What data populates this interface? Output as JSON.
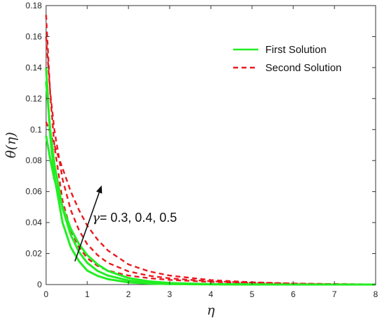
{
  "chart_data": {
    "type": "line",
    "title": "",
    "xlabel": "η",
    "ylabel": "θ(η)",
    "xlim": [
      0,
      8
    ],
    "ylim": [
      0,
      0.18
    ],
    "xticks": [
      0,
      1,
      2,
      3,
      4,
      5,
      6,
      7,
      8
    ],
    "xtick_labels": [
      "0",
      "1",
      "2",
      "3",
      "4",
      "5",
      "6",
      "7",
      "8"
    ],
    "yticks": [
      0,
      0.02,
      0.04,
      0.06,
      0.08,
      0.1,
      0.12,
      0.14,
      0.16,
      0.18
    ],
    "ytick_labels": [
      "0",
      "0.02",
      "0.04",
      "0.06",
      "0.08",
      "0.1",
      "0.12",
      "0.14",
      "0.16",
      "0.18"
    ],
    "grid": false,
    "legend_position": "top-right",
    "legend": [
      {
        "label": "First Solution",
        "color": "#22ee22",
        "style": "solid"
      },
      {
        "label": "Second Solution",
        "color": "#e8191f",
        "style": "dashed"
      }
    ],
    "annotation": {
      "symbol": "γ",
      "text": "= 0.3, 0.4, 0.5",
      "arrow_from": [
        0.7,
        0.015
      ],
      "arrow_to": [
        1.35,
        0.064
      ]
    },
    "series": [
      {
        "group": "First Solution",
        "gamma": 0.3,
        "x": [
          0,
          0.1,
          0.2,
          0.4,
          0.6,
          0.8,
          1,
          1.25,
          1.5,
          2,
          2.5,
          3,
          4,
          5,
          6,
          7,
          8
        ],
        "y": [
          0.14,
          0.096,
          0.07,
          0.04,
          0.024,
          0.015,
          0.009,
          0.0056,
          0.0035,
          0.0014,
          0.0006,
          0.0003,
          0.0001,
          0,
          0,
          0,
          0
        ]
      },
      {
        "group": "First Solution",
        "gamma": 0.4,
        "x": [
          0,
          0.1,
          0.2,
          0.4,
          0.6,
          0.8,
          1,
          1.25,
          1.5,
          2,
          2.5,
          3,
          4,
          5,
          6,
          7,
          8
        ],
        "y": [
          0.131,
          0.1,
          0.078,
          0.049,
          0.032,
          0.021,
          0.014,
          0.0088,
          0.0058,
          0.0026,
          0.0012,
          0.0006,
          0.0002,
          0.0001,
          0,
          0,
          0
        ]
      },
      {
        "group": "First Solution",
        "gamma": 0.5,
        "x": [
          0,
          0.1,
          0.2,
          0.4,
          0.6,
          0.8,
          1,
          1.25,
          1.5,
          2,
          2.5,
          3,
          4,
          5,
          6,
          7,
          8
        ],
        "y": [
          0.096,
          0.081,
          0.068,
          0.05,
          0.036,
          0.026,
          0.019,
          0.013,
          0.0088,
          0.0042,
          0.0021,
          0.001,
          0.0003,
          0.0001,
          0,
          0,
          0
        ]
      },
      {
        "group": "Second Solution",
        "gamma": 0.3,
        "x": [
          0,
          0.1,
          0.2,
          0.4,
          0.6,
          0.8,
          1,
          1.25,
          1.5,
          2,
          2.5,
          3,
          4,
          5,
          6,
          7,
          8
        ],
        "y": [
          0.174,
          0.123,
          0.09,
          0.054,
          0.035,
          0.024,
          0.017,
          0.012,
          0.009,
          0.0058,
          0.0041,
          0.003,
          0.0017,
          0.001,
          0.0005,
          0.0002,
          0.0001
        ]
      },
      {
        "group": "Second Solution",
        "gamma": 0.4,
        "x": [
          0,
          0.1,
          0.2,
          0.4,
          0.6,
          0.8,
          1,
          1.25,
          1.5,
          2,
          2.5,
          3,
          4,
          5,
          6,
          7,
          8
        ],
        "y": [
          0.16,
          0.124,
          0.1,
          0.068,
          0.048,
          0.035,
          0.026,
          0.019,
          0.014,
          0.0085,
          0.0057,
          0.004,
          0.0021,
          0.0012,
          0.0006,
          0.0003,
          0.0001
        ]
      },
      {
        "group": "Second Solution",
        "gamma": 0.5,
        "x": [
          0,
          0.1,
          0.2,
          0.4,
          0.6,
          0.8,
          1,
          1.25,
          1.5,
          2,
          2.5,
          3,
          4,
          5,
          6,
          7,
          8
        ],
        "y": [
          0.105,
          0.098,
          0.09,
          0.075,
          0.06,
          0.048,
          0.038,
          0.029,
          0.022,
          0.013,
          0.0085,
          0.0058,
          0.0029,
          0.0015,
          0.0007,
          0.0003,
          0.0001
        ]
      }
    ]
  }
}
